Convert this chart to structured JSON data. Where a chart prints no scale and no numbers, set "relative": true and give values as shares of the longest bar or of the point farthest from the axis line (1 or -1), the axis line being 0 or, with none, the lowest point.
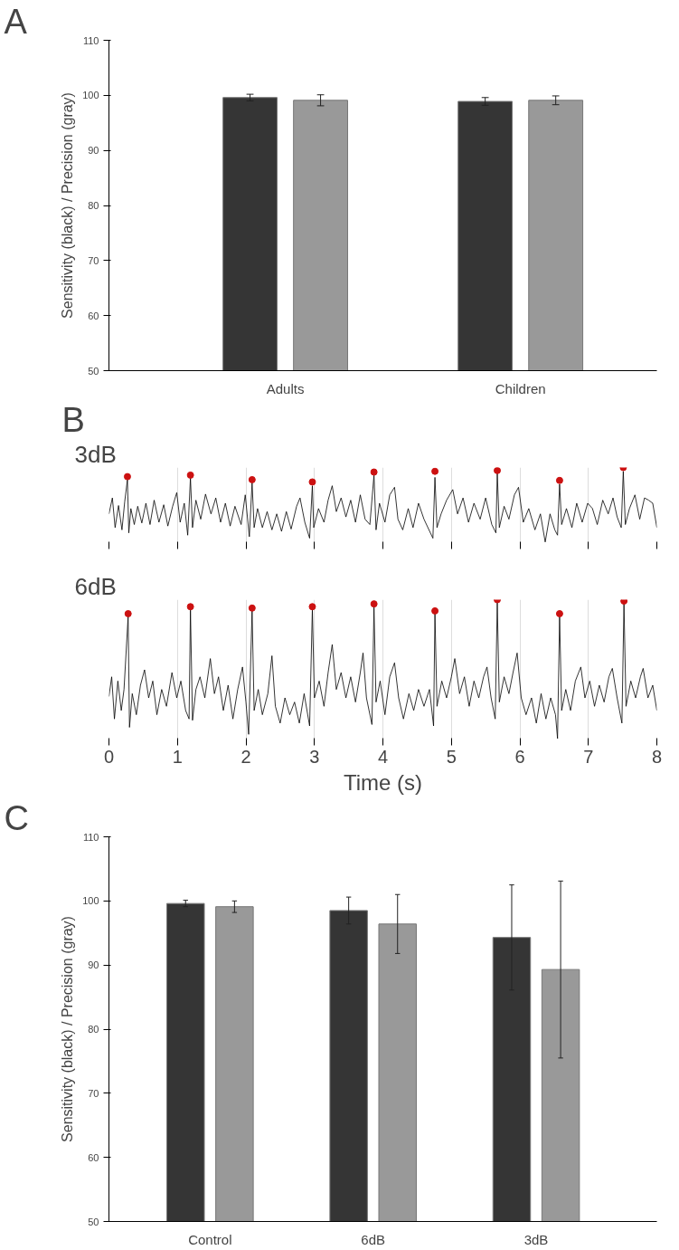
{
  "chart_data": [
    {
      "type": "bar",
      "annotations": [
        "A"
      ],
      "ylabel": "Sensitivity (black) / Precision (gray)",
      "categories": [
        "Adults",
        "Children"
      ],
      "ylim": [
        50,
        110
      ],
      "yticks": [
        50,
        60,
        70,
        80,
        90,
        100,
        110
      ],
      "grid": false,
      "series": [
        {
          "color": "#353535",
          "values": [
            99.6,
            98.9
          ],
          "errors": [
            0.6,
            0.7
          ]
        },
        {
          "color": "#999999",
          "values": [
            99.1,
            99.1
          ],
          "errors": [
            1.0,
            0.8
          ]
        }
      ]
    },
    {
      "type": "line",
      "title": "3dB",
      "annotations": [
        "B"
      ],
      "relative": true,
      "xlim": [
        0,
        8
      ],
      "xticks": [
        0,
        1,
        2,
        3,
        4,
        5,
        6,
        7,
        8
      ],
      "tick_labels": false,
      "grid": "x",
      "series": [
        {
          "type": "line",
          "color": "#000000",
          "x": [
            0,
            0.05,
            0.09,
            0.14,
            0.19,
            0.23,
            0.27,
            0.29,
            0.32,
            0.37,
            0.42,
            0.48,
            0.54,
            0.6,
            0.66,
            0.73,
            0.8,
            0.86,
            0.93,
            0.99,
            1.04,
            1.1,
            1.15,
            1.19,
            1.22,
            1.27,
            1.34,
            1.41,
            1.49,
            1.56,
            1.63,
            1.7,
            1.77,
            1.84,
            1.93,
            1.99,
            2.05,
            2.09,
            2.12,
            2.17,
            2.24,
            2.31,
            2.38,
            2.45,
            2.52,
            2.59,
            2.66,
            2.74,
            2.79,
            2.86,
            2.93,
            2.97,
            2.99,
            3.06,
            3.14,
            3.2,
            3.26,
            3.32,
            3.39,
            3.46,
            3.53,
            3.6,
            3.67,
            3.74,
            3.81,
            3.87,
            3.9,
            3.95,
            4.03,
            4.1,
            4.17,
            4.22,
            4.29,
            4.37,
            4.44,
            4.52,
            4.6,
            4.73,
            4.76,
            4.79,
            4.85,
            4.93,
            5.02,
            5.09,
            5.17,
            5.25,
            5.33,
            5.42,
            5.5,
            5.59,
            5.65,
            5.67,
            5.7,
            5.77,
            5.84,
            5.92,
            5.98,
            6.05,
            6.13,
            6.22,
            6.3,
            6.37,
            6.44,
            6.51,
            6.55,
            6.58,
            6.61,
            6.68,
            6.76,
            6.83,
            6.91,
            6.99,
            7.06,
            7.13,
            7.21,
            7.29,
            7.36,
            7.42,
            7.48,
            7.51,
            7.54,
            7.6,
            7.68,
            7.75,
            7.82,
            7.88,
            7.94,
            8
          ],
          "values": [
            0.39,
            0.6,
            0.21,
            0.5,
            0.18,
            0.55,
            0.84,
            0.14,
            0.46,
            0.25,
            0.49,
            0.27,
            0.53,
            0.25,
            0.57,
            0.28,
            0.51,
            0.23,
            0.49,
            0.67,
            0.28,
            0.53,
            0.11,
            0.86,
            0.21,
            0.57,
            0.32,
            0.65,
            0.39,
            0.6,
            0.28,
            0.53,
            0.23,
            0.49,
            0.25,
            0.64,
            0.09,
            0.8,
            0.21,
            0.46,
            0.21,
            0.42,
            0.18,
            0.39,
            0.16,
            0.42,
            0.19,
            0.49,
            0.6,
            0.28,
            0.07,
            0.76,
            0.21,
            0.46,
            0.28,
            0.57,
            0.76,
            0.42,
            0.6,
            0.35,
            0.57,
            0.28,
            0.64,
            0.32,
            0.25,
            0.9,
            0.18,
            0.53,
            0.28,
            0.64,
            0.74,
            0.32,
            0.18,
            0.46,
            0.21,
            0.53,
            0.32,
            0.07,
            0.87,
            0.21,
            0.39,
            0.57,
            0.71,
            0.39,
            0.6,
            0.28,
            0.53,
            0.32,
            0.6,
            0.25,
            0.14,
            0.93,
            0.21,
            0.49,
            0.32,
            0.64,
            0.74,
            0.28,
            0.46,
            0.18,
            0.39,
            0.02,
            0.39,
            0.18,
            0.11,
            0.78,
            0.25,
            0.46,
            0.21,
            0.53,
            0.28,
            0.53,
            0.46,
            0.25,
            0.57,
            0.39,
            0.6,
            0.35,
            0.21,
            0.95,
            0.25,
            0.46,
            0.64,
            0.32,
            0.6,
            0.57,
            0.53,
            0.21
          ]
        },
        {
          "type": "scatter",
          "color": "#cc1111",
          "marker": "circle",
          "x": [
            0.27,
            1.19,
            2.09,
            2.97,
            3.87,
            4.76,
            5.67,
            6.58,
            7.51
          ],
          "values": [
            0.88,
            0.9,
            0.84,
            0.81,
            0.94,
            0.95,
            0.96,
            0.83,
            1
          ]
        }
      ]
    },
    {
      "type": "line",
      "title": "6dB",
      "xlabel": "Time (s)",
      "relative": true,
      "xlim": [
        0,
        8
      ],
      "xticks": [
        0,
        1,
        2,
        3,
        4,
        5,
        6,
        7,
        8
      ],
      "tick_labels": "x",
      "grid": "x",
      "series": [
        {
          "type": "line",
          "color": "#000000",
          "x": [
            0,
            0.04,
            0.08,
            0.13,
            0.18,
            0.22,
            0.28,
            0.3,
            0.34,
            0.4,
            0.46,
            0.52,
            0.58,
            0.64,
            0.7,
            0.77,
            0.84,
            0.92,
            0.99,
            1.05,
            1.12,
            1.17,
            1.19,
            1.22,
            1.27,
            1.33,
            1.4,
            1.48,
            1.54,
            1.6,
            1.67,
            1.74,
            1.81,
            1.88,
            1.95,
            2,
            2.04,
            2.09,
            2.12,
            2.18,
            2.24,
            2.32,
            2.38,
            2.43,
            2.5,
            2.57,
            2.64,
            2.71,
            2.78,
            2.85,
            2.93,
            2.97,
            3,
            3.07,
            3.14,
            3.2,
            3.26,
            3.32,
            3.39,
            3.46,
            3.53,
            3.6,
            3.67,
            3.71,
            3.76,
            3.84,
            3.87,
            3.9,
            3.96,
            4.03,
            4.1,
            4.17,
            4.23,
            4.3,
            4.38,
            4.45,
            4.52,
            4.6,
            4.68,
            4.74,
            4.76,
            4.79,
            4.86,
            4.93,
            5,
            5.05,
            5.12,
            5.19,
            5.26,
            5.33,
            5.4,
            5.47,
            5.52,
            5.58,
            5.64,
            5.67,
            5.7,
            5.77,
            5.84,
            5.9,
            5.96,
            6.02,
            6.09,
            6.17,
            6.24,
            6.31,
            6.38,
            6.45,
            6.52,
            6.55,
            6.58,
            6.61,
            6.67,
            6.74,
            6.81,
            6.89,
            6.95,
            7.02,
            7.09,
            7.16,
            7.23,
            7.3,
            7.35,
            7.42,
            7.49,
            7.52,
            7.55,
            7.62,
            7.69,
            7.76,
            7.8,
            7.87,
            7.94,
            8
          ],
          "values": [
            0.31,
            0.45,
            0.15,
            0.42,
            0.21,
            0.36,
            0.88,
            0.09,
            0.33,
            0.18,
            0.39,
            0.5,
            0.3,
            0.42,
            0.18,
            0.36,
            0.24,
            0.48,
            0.3,
            0.42,
            0.21,
            0.15,
            0.93,
            0.14,
            0.36,
            0.45,
            0.3,
            0.58,
            0.33,
            0.45,
            0.21,
            0.39,
            0.15,
            0.36,
            0.52,
            0.27,
            0.04,
            0.92,
            0.21,
            0.36,
            0.18,
            0.33,
            0.6,
            0.24,
            0.12,
            0.3,
            0.18,
            0.27,
            0.12,
            0.33,
            0.1,
            0.93,
            0.3,
            0.42,
            0.24,
            0.48,
            0.68,
            0.36,
            0.48,
            0.3,
            0.45,
            0.27,
            0.48,
            0.62,
            0.3,
            0.11,
            0.95,
            0.27,
            0.42,
            0.18,
            0.45,
            0.55,
            0.3,
            0.15,
            0.33,
            0.21,
            0.36,
            0.24,
            0.36,
            0.1,
            0.9,
            0.24,
            0.42,
            0.3,
            0.45,
            0.58,
            0.33,
            0.45,
            0.24,
            0.42,
            0.3,
            0.45,
            0.52,
            0.3,
            0.15,
            0.98,
            0.27,
            0.45,
            0.33,
            0.48,
            0.62,
            0.3,
            0.18,
            0.3,
            0.12,
            0.33,
            0.15,
            0.3,
            0.18,
            0.01,
            0.88,
            0.21,
            0.36,
            0.21,
            0.42,
            0.52,
            0.3,
            0.42,
            0.24,
            0.39,
            0.27,
            0.45,
            0.51,
            0.3,
            0.12,
            0.97,
            0.24,
            0.42,
            0.3,
            0.45,
            0.51,
            0.3,
            0.39,
            0.21
          ]
        },
        {
          "type": "scatter",
          "color": "#cc1111",
          "marker": "circle",
          "x": [
            0.28,
            1.19,
            2.09,
            2.97,
            3.87,
            4.76,
            5.67,
            6.58,
            7.52
          ],
          "values": [
            0.9,
            0.95,
            0.94,
            0.95,
            0.97,
            0.92,
            1,
            0.9,
            0.99
          ]
        }
      ]
    },
    {
      "type": "bar",
      "annotations": [
        "C"
      ],
      "ylabel": "Sensitivity (black) / Precision (gray)",
      "categories": [
        "Control",
        "6dB",
        "3dB"
      ],
      "ylim": [
        50,
        110
      ],
      "yticks": [
        50,
        60,
        70,
        80,
        90,
        100,
        110
      ],
      "grid": false,
      "series": [
        {
          "color": "#353535",
          "values": [
            99.6,
            98.5,
            94.3
          ],
          "errors": [
            0.5,
            2.1,
            8.2
          ]
        },
        {
          "color": "#999999",
          "values": [
            99.1,
            96.4,
            89.3
          ],
          "errors": [
            0.9,
            4.6,
            13.8
          ]
        }
      ]
    }
  ]
}
